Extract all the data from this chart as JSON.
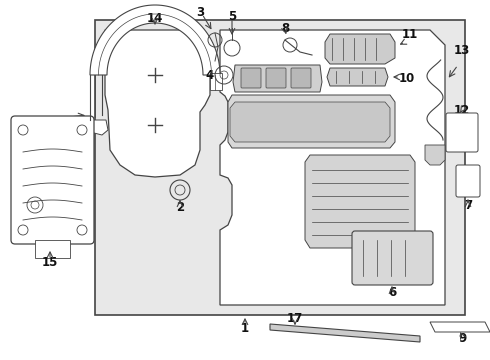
{
  "bg_color": "#ffffff",
  "box_bg": "#e8e8e8",
  "line_color": "#444444",
  "text_color": "#111111",
  "fig_width": 4.9,
  "fig_height": 3.6,
  "dpi": 100
}
